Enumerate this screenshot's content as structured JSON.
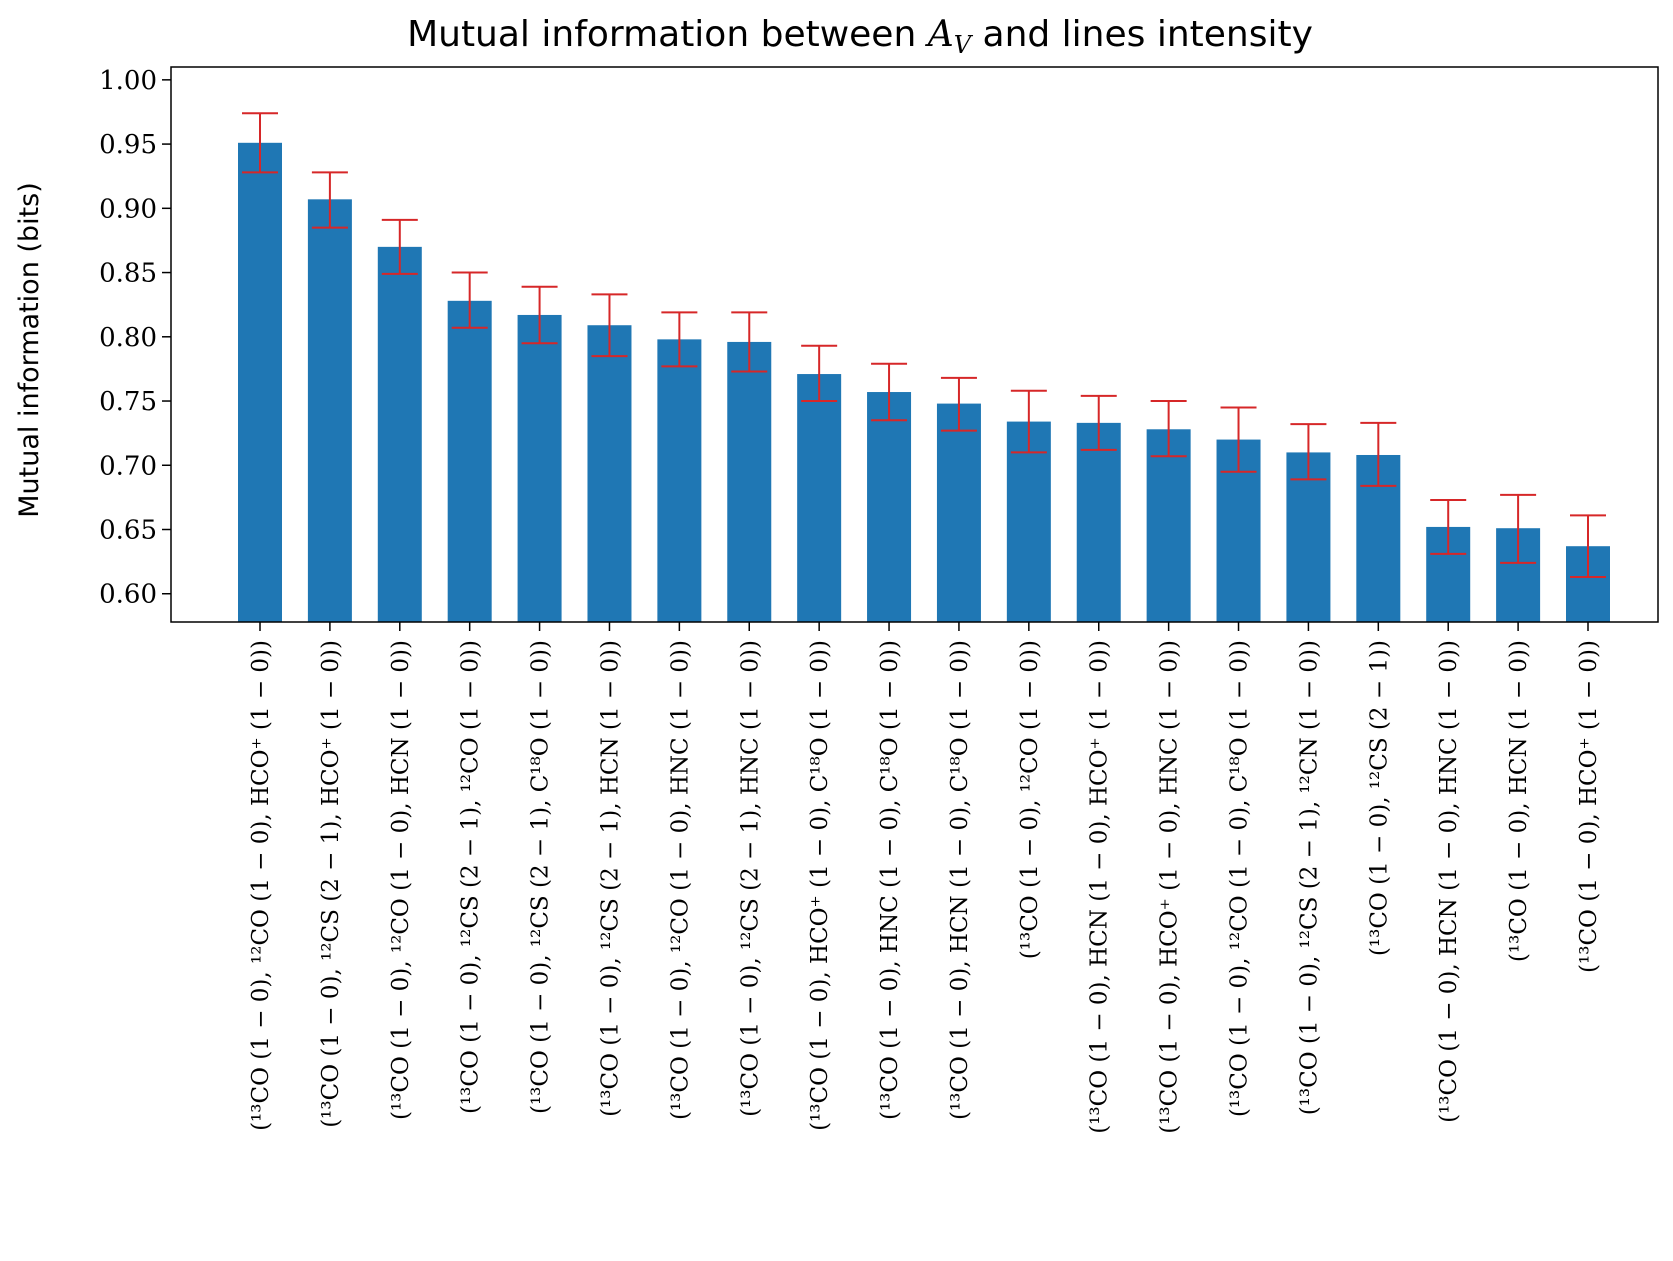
{
  "chart_data": {
    "type": "bar",
    "title": "Mutual information between A_V and lines intensity",
    "xlabel": "",
    "ylabel": "Mutual information (bits)",
    "ylim": [
      0.578,
      1.01
    ],
    "yticks": [
      "0.60",
      "0.65",
      "0.70",
      "0.75",
      "0.80",
      "0.85",
      "0.90",
      "0.95",
      "1.00"
    ],
    "grid": false,
    "colors": {
      "bar": "#1f77b4",
      "error_bar": "#d62728"
    },
    "categories": [
      [
        "(¹³CO (1 − 0), ¹²CO (1 − 0), HCO⁺ (1 − 0))"
      ],
      [
        "(¹³CO (1 − 0), ¹²CS (2 − 1), HCO⁺ (1 − 0))"
      ],
      [
        "(¹³CO (1 − 0), ¹²CO (1 − 0), HCN (1 − 0))"
      ],
      [
        "(¹³CO (1 − 0), ¹²CS (2 − 1), ¹²CO (1 − 0))"
      ],
      [
        "(¹³CO (1 − 0), ¹²CS (2 − 1), C¹⁸O (1 − 0))"
      ],
      [
        "(¹³CO (1 − 0), ¹²CS (2 − 1), HCN (1 − 0))"
      ],
      [
        "(¹³CO (1 − 0), ¹²CO (1 − 0), HNC (1 − 0))"
      ],
      [
        "(¹³CO (1 − 0), ¹²CS (2 − 1), HNC (1 − 0))"
      ],
      [
        "(¹³CO (1 − 0), HCO⁺ (1 − 0), C¹⁸O (1 − 0))"
      ],
      [
        "(¹³CO (1 − 0), HNC (1 − 0), C¹⁸O (1 − 0))"
      ],
      [
        "(¹³CO (1 − 0), HCN (1 − 0), C¹⁸O (1 − 0))"
      ],
      [
        "(¹³CO (1 − 0), ¹²CO (1 − 0))"
      ],
      [
        "(¹³CO (1 − 0), HCN (1 − 0), HCO⁺ (1 − 0))"
      ],
      [
        "(¹³CO (1 − 0), HCO⁺ (1 − 0), HNC (1 − 0))"
      ],
      [
        "(¹³CO (1 − 0), ¹²CO (1 − 0), C¹⁸O (1 − 0))"
      ],
      [
        "(¹³CO (1 − 0), ¹²CS (2 − 1), ¹²CN (1 − 0))"
      ],
      [
        "(¹³CO (1 − 0), ¹²CS (2 − 1))"
      ],
      [
        "(¹³CO (1 − 0), HCN (1 − 0), HNC (1 − 0))"
      ],
      [
        "(¹³CO (1 − 0), HCN (1 − 0))"
      ],
      [
        "(¹³CO (1 − 0), HCO⁺ (1 − 0))"
      ]
    ],
    "values": [
      0.951,
      0.907,
      0.87,
      0.828,
      0.817,
      0.809,
      0.798,
      0.796,
      0.771,
      0.757,
      0.748,
      0.734,
      0.733,
      0.728,
      0.72,
      0.71,
      0.708,
      0.652,
      0.651,
      0.637
    ],
    "error_low": [
      0.928,
      0.885,
      0.849,
      0.807,
      0.795,
      0.785,
      0.777,
      0.773,
      0.75,
      0.735,
      0.727,
      0.71,
      0.712,
      0.707,
      0.695,
      0.689,
      0.684,
      0.631,
      0.624,
      0.613
    ],
    "error_high": [
      0.974,
      0.928,
      0.891,
      0.85,
      0.839,
      0.833,
      0.819,
      0.819,
      0.793,
      0.779,
      0.768,
      0.758,
      0.754,
      0.75,
      0.745,
      0.732,
      0.733,
      0.673,
      0.677,
      0.661
    ]
  }
}
